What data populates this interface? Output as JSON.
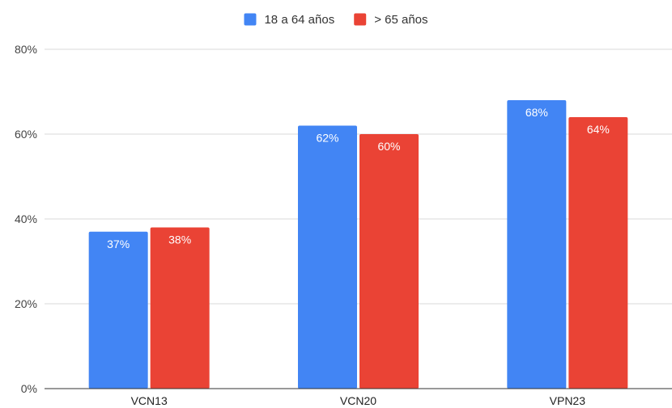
{
  "chart_data": {
    "type": "bar",
    "categories": [
      "VCN13",
      "VCN20",
      "VPN23"
    ],
    "series": [
      {
        "name": "18 a 64 años",
        "values": [
          37,
          62,
          68
        ],
        "color": "#4285f4",
        "labels": [
          "37%",
          "62%",
          "68%"
        ]
      },
      {
        "name": "> 65 años",
        "values": [
          38,
          60,
          64
        ],
        "color": "#ea4335",
        "labels": [
          "38%",
          "60%",
          "64%"
        ]
      }
    ],
    "ylim": [
      0,
      80
    ],
    "yticks": [
      0,
      20,
      40,
      60,
      80
    ],
    "ytick_labels": [
      "0%",
      "20%",
      "40%",
      "60%",
      "80%"
    ],
    "grid": true,
    "legend_position": "top-center"
  }
}
